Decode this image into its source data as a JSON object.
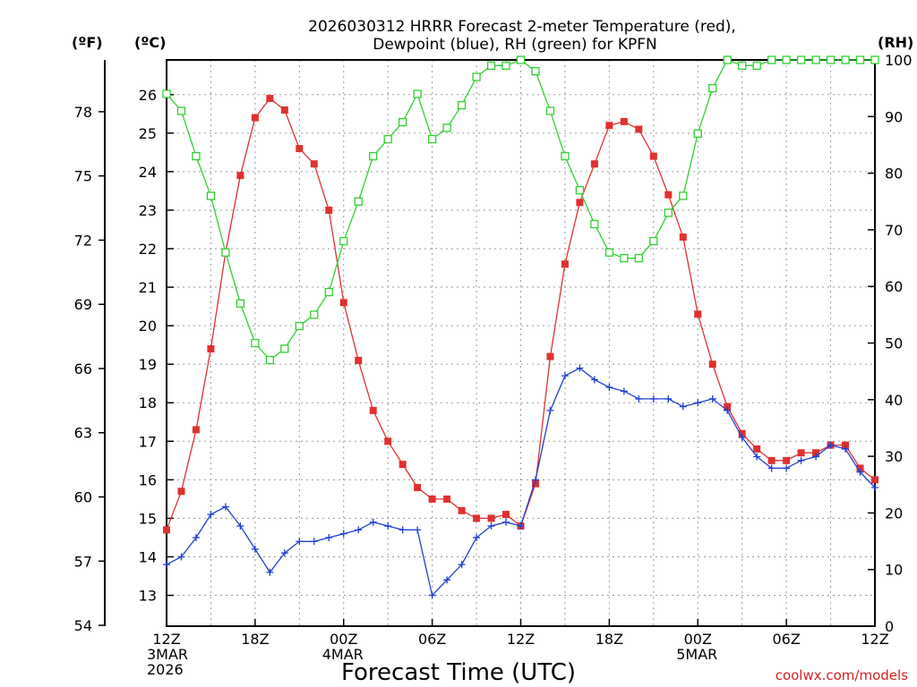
{
  "chart_data": {
    "type": "line",
    "title_line1": "2026030312 HRRR Forecast 2-meter Temperature (red),",
    "title_line2": "Dewpoint (blue), RH (green) for KPFN",
    "xlabel": "Forecast Time (UTC)",
    "credit": "coolwx.com/models",
    "units": {
      "f": "(ºF)",
      "c": "(ºC)",
      "rh": "(RH)"
    },
    "x_ticks": [
      {
        "hour": 0,
        "lines": [
          "12Z",
          "3MAR",
          "2026"
        ]
      },
      {
        "hour": 6,
        "lines": [
          "18Z"
        ]
      },
      {
        "hour": 12,
        "lines": [
          "00Z",
          "4MAR"
        ]
      },
      {
        "hour": 18,
        "lines": [
          "06Z"
        ]
      },
      {
        "hour": 24,
        "lines": [
          "12Z"
        ]
      },
      {
        "hour": 30,
        "lines": [
          "18Z"
        ]
      },
      {
        "hour": 36,
        "lines": [
          "00Z",
          "5MAR"
        ]
      },
      {
        "hour": 42,
        "lines": [
          "06Z"
        ]
      },
      {
        "hour": 48,
        "lines": [
          "12Z"
        ]
      }
    ],
    "xlim": [
      0,
      48
    ],
    "c_ticks": [
      13,
      14,
      15,
      16,
      17,
      18,
      19,
      20,
      21,
      22,
      23,
      24,
      25,
      26
    ],
    "f_ticks": [
      54,
      57,
      60,
      63,
      66,
      69,
      72,
      75,
      78
    ],
    "rh_ticks": [
      0,
      10,
      20,
      30,
      40,
      50,
      60,
      70,
      80,
      90,
      100
    ],
    "ylim_c": [
      12.2,
      26.9
    ],
    "ylim_rh": [
      0,
      100
    ],
    "series": [
      {
        "name": "Temperature",
        "color": "#e03030",
        "marker": "filled-square",
        "axis": "c",
        "values": [
          14.7,
          15.7,
          17.3,
          19.4,
          21.9,
          23.9,
          25.4,
          25.9,
          25.6,
          24.6,
          24.2,
          23.0,
          20.6,
          19.1,
          17.8,
          17.0,
          16.4,
          15.8,
          15.5,
          15.5,
          15.2,
          15.0,
          15.0,
          15.1,
          14.8,
          15.9,
          19.2,
          21.6,
          23.2,
          24.2,
          25.2,
          25.3,
          25.1,
          24.4,
          23.4,
          22.3,
          20.3,
          19.0,
          17.9,
          17.2,
          16.8,
          16.5,
          16.5,
          16.7,
          16.7,
          16.9,
          16.9,
          16.3,
          16.0
        ]
      },
      {
        "name": "Dewpoint",
        "color": "#2040d0",
        "marker": "plus",
        "axis": "c",
        "values": [
          13.8,
          14.0,
          14.5,
          15.1,
          15.3,
          14.8,
          14.2,
          13.6,
          14.1,
          14.4,
          14.4,
          14.5,
          14.6,
          14.7,
          14.9,
          14.8,
          14.7,
          14.7,
          13.0,
          13.4,
          13.8,
          14.5,
          14.8,
          14.9,
          14.8,
          16.0,
          17.8,
          18.7,
          18.9,
          18.6,
          18.4,
          18.3,
          18.1,
          18.1,
          18.1,
          17.9,
          18.0,
          18.1,
          17.8,
          17.1,
          16.6,
          16.3,
          16.3,
          16.5,
          16.6,
          16.9,
          16.8,
          16.2,
          15.8
        ]
      },
      {
        "name": "RH",
        "color": "#30d030",
        "marker": "open-square",
        "axis": "rh",
        "values": [
          94,
          91,
          83,
          76,
          66,
          57,
          50,
          47,
          49,
          53,
          55,
          59,
          68,
          75,
          83,
          86,
          89,
          94,
          86,
          88,
          92,
          97,
          99,
          99,
          100,
          98,
          91,
          83,
          77,
          71,
          66,
          65,
          65,
          68,
          73,
          76,
          87,
          95,
          100,
          99,
          99,
          100,
          100,
          100,
          100,
          100,
          100,
          100,
          100
        ]
      }
    ]
  }
}
